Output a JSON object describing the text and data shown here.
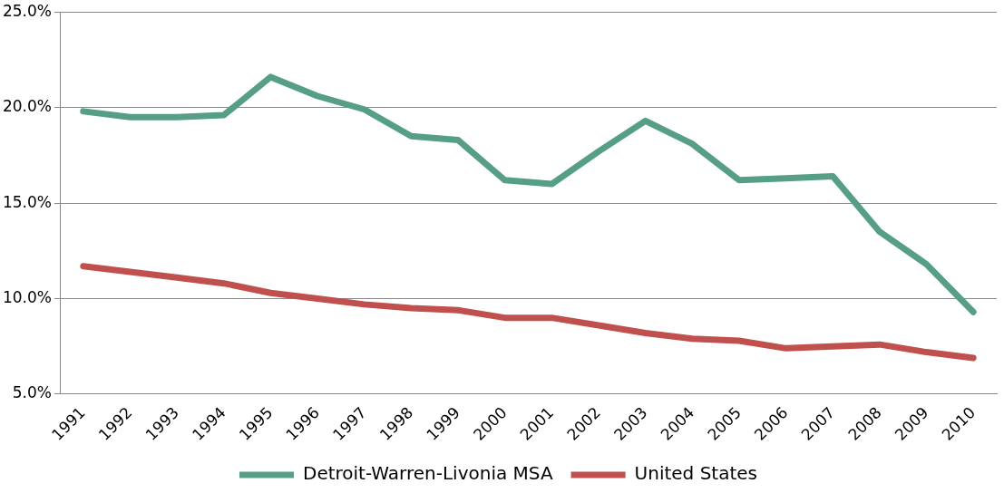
{
  "chart_data": {
    "type": "line",
    "categories": [
      "1991",
      "1992",
      "1993",
      "1994",
      "1995",
      "1996",
      "1997",
      "1998",
      "1999",
      "2000",
      "2001",
      "2002",
      "2003",
      "2004",
      "2005",
      "2006",
      "2007",
      "2008",
      "2009",
      "2010"
    ],
    "series": [
      {
        "name": "Detroit-Warren-Livonia MSA",
        "color": "#569e86",
        "values": [
          19.8,
          19.5,
          19.5,
          19.6,
          21.6,
          20.6,
          19.9,
          18.5,
          18.3,
          16.2,
          16.0,
          17.7,
          19.3,
          18.1,
          16.2,
          16.3,
          16.4,
          13.5,
          11.8,
          9.3
        ]
      },
      {
        "name": "United States",
        "color": "#c0504d",
        "values": [
          11.7,
          11.4,
          11.1,
          10.8,
          10.3,
          10.0,
          9.7,
          9.5,
          9.4,
          9.0,
          9.0,
          8.6,
          8.2,
          7.9,
          7.8,
          7.4,
          7.5,
          7.6,
          7.2,
          6.9
        ]
      }
    ],
    "ylim": [
      5,
      25
    ],
    "yticks": [
      {
        "value": 5,
        "label": "5.0%"
      },
      {
        "value": 10,
        "label": "10.0%"
      },
      {
        "value": 15,
        "label": "15.0%"
      },
      {
        "value": 20,
        "label": "20.0%"
      },
      {
        "value": 25,
        "label": "25.0%"
      }
    ],
    "grid": "y",
    "legend": "bottom",
    "marker": "none",
    "line_style": "solid"
  }
}
